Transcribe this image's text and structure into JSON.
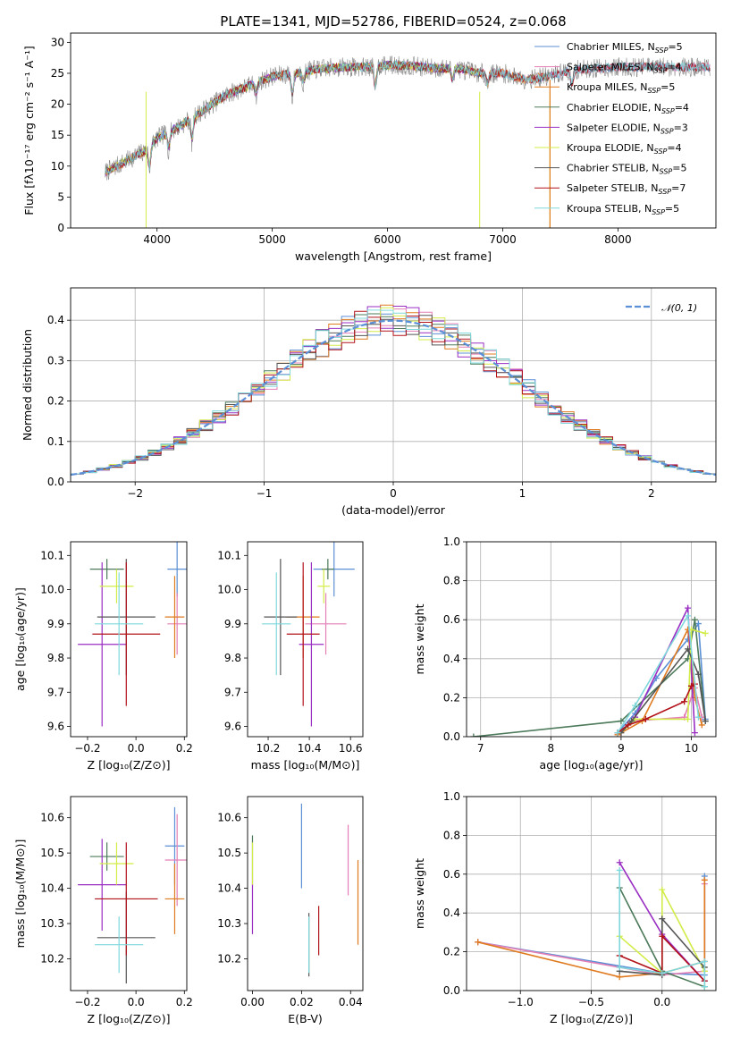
{
  "figure_title": "PLATE=1341, MJD=52786, FIBERID=0524, z=0.068",
  "chart_data": [
    {
      "id": "spectrum",
      "type": "line",
      "title": "PLATE=1341, MJD=52786, FIBERID=0524, z=0.068",
      "xlabel": "wavelength [Angstrom, rest frame]",
      "ylabel": "Flux [fλ10⁻¹⁷ erg cm⁻² s⁻¹ A⁻¹]",
      "xlim": [
        3250,
        8850
      ],
      "ylim": [
        0,
        31.5
      ],
      "xticks": [
        4000,
        5000,
        6000,
        7000,
        8000
      ],
      "yticks": [
        0,
        5,
        10,
        15,
        20,
        25,
        30
      ],
      "grid": false,
      "legend_position": "upper-right",
      "continuum": {
        "wavelength": [
          3550,
          3700,
          3900,
          4000,
          4200,
          4400,
          4600,
          4800,
          5000,
          5200,
          5400,
          5600,
          5800,
          6000,
          6200,
          6400,
          6600,
          6800,
          7000,
          7200,
          7400,
          7600,
          7800,
          8000,
          8200,
          8400,
          8600,
          8800
        ],
        "flux": [
          9,
          10.5,
          12.5,
          14.5,
          16.5,
          19,
          21.5,
          23,
          24.5,
          25,
          25.7,
          26,
          26,
          26.3,
          26.2,
          25.8,
          25.8,
          25,
          25,
          24,
          24.5,
          25.5,
          25.8,
          26,
          26,
          26,
          26,
          26
        ]
      },
      "absorption_features": [
        {
          "wavelength": 3934,
          "depth": 4
        },
        {
          "wavelength": 4101,
          "depth": 3
        },
        {
          "wavelength": 4304,
          "depth": 4
        },
        {
          "wavelength": 4861,
          "depth": 2
        },
        {
          "wavelength": 5175,
          "depth": 4
        },
        {
          "wavelength": 5270,
          "depth": 2
        },
        {
          "wavelength": 5893,
          "depth": 4
        },
        {
          "wavelength": 6563,
          "depth": 2
        },
        {
          "wavelength": 6867,
          "depth": 2
        },
        {
          "wavelength": 7600,
          "depth": 3
        }
      ],
      "series": [
        {
          "name": "Chabrier MILES, N_SSP=5",
          "legend_main": "Chabrier MILES, N",
          "legend_sub": "SSP",
          "legend_end": "=5",
          "color": "#5b8fd6",
          "x_end": 8800
        },
        {
          "name": "Salpeter MILES, N_SSP=4",
          "legend_main": "Salpeter MILES, N",
          "legend_sub": "SSP",
          "legend_end": "=4",
          "color": "#e37fb6",
          "x_end": 8800
        },
        {
          "name": "Kroupa MILES, N_SSP=5",
          "legend_main": "Kroupa MILES, N",
          "legend_sub": "SSP",
          "legend_end": "=5",
          "color": "#e07a1f",
          "x_end": 7400
        },
        {
          "name": "Chabrier ELODIE, N_SSP=4",
          "legend_main": "Chabrier ELODIE, N",
          "legend_sub": "SSP",
          "legend_end": "=4",
          "color": "#4c7a5a",
          "x_end": 6800
        },
        {
          "name": "Salpeter ELODIE, N_SSP=3",
          "legend_main": "Salpeter ELODIE, N",
          "legend_sub": "SSP",
          "legend_end": "=3",
          "color": "#9a2ec3",
          "x_end": 6800
        },
        {
          "name": "Kroupa ELODIE, N_SSP=4",
          "legend_main": "Kroupa ELODIE, N",
          "legend_sub": "SSP",
          "legend_end": "=4",
          "color": "#d3ec49",
          "x_end": 6800
        },
        {
          "name": "Chabrier STELIB, N_SSP=5",
          "legend_main": "Chabrier STELIB, N",
          "legend_sub": "SSP",
          "legend_end": "=5",
          "color": "#555555",
          "x_end": 8800
        },
        {
          "name": "Salpeter STELIB, N_SSP=7",
          "legend_main": "Salpeter STELIB, N",
          "legend_sub": "SSP",
          "legend_end": "=7",
          "color": "#b2121a",
          "x_end": 8800
        },
        {
          "name": "Kroupa STELIB, N_SSP=5",
          "legend_main": "Kroupa STELIB, N",
          "legend_sub": "SSP",
          "legend_end": "=5",
          "color": "#7fd8dc",
          "x_end": 8800
        }
      ]
    },
    {
      "id": "residuals",
      "type": "histogram",
      "xlabel": "(data-model)/error",
      "ylabel": "Normed distribution",
      "xlim": [
        -2.5,
        2.5
      ],
      "ylim": [
        0,
        0.48
      ],
      "xticks": [
        -2,
        -1,
        0,
        1,
        2
      ],
      "yticks": [
        0.0,
        0.1,
        0.2,
        0.3,
        0.4
      ],
      "grid": true,
      "bin_width": 0.1,
      "reference_curve": {
        "label": "𝒩(0, 1)",
        "color": "#5b8fd6"
      },
      "legend_position": "upper-right"
    },
    {
      "id": "age-vs-metallicity",
      "type": "errorbar",
      "xlabel": "Z [log₁₀(Z/Z⊙)]",
      "ylabel": "age  [log₁₀(age/yr)]",
      "xlim": [
        -0.27,
        0.21
      ],
      "ylim": [
        9.57,
        10.14
      ],
      "xticks": [
        -0.2,
        0.0,
        0.2
      ],
      "yticks": [
        9.6,
        9.7,
        9.8,
        9.9,
        10.0,
        10.1
      ],
      "points": [
        {
          "x": 0.17,
          "y": 10.06,
          "xerr": 0.04,
          "yerr": 0.08,
          "color": "#5b8fd6"
        },
        {
          "x": 0.17,
          "y": 9.9,
          "xerr": 0.04,
          "yerr": 0.09,
          "color": "#e37fb6"
        },
        {
          "x": 0.16,
          "y": 9.92,
          "xerr": 0.04,
          "yerr": 0.12,
          "color": "#e07a1f"
        },
        {
          "x": -0.12,
          "y": 10.06,
          "xerr": 0.07,
          "yerr": 0.03,
          "color": "#4c7a5a"
        },
        {
          "x": -0.14,
          "y": 9.84,
          "xerr": 0.1,
          "yerr": 0.24,
          "color": "#9a2ec3"
        },
        {
          "x": -0.08,
          "y": 10.01,
          "xerr": 0.07,
          "yerr": 0.05,
          "color": "#d3ec49"
        },
        {
          "x": -0.04,
          "y": 9.92,
          "xerr": 0.12,
          "yerr": 0.17,
          "color": "#555555"
        },
        {
          "x": -0.04,
          "y": 9.87,
          "xerr": 0.14,
          "yerr": 0.21,
          "color": "#b2121a"
        },
        {
          "x": -0.07,
          "y": 9.9,
          "xerr": 0.1,
          "yerr": 0.15,
          "color": "#7fd8dc"
        }
      ]
    },
    {
      "id": "age-vs-mass",
      "type": "errorbar",
      "xlabel": "mass [log₁₀(M/M⊙)]",
      "ylabel": "",
      "xlim": [
        10.1,
        10.66
      ],
      "ylim": [
        9.57,
        10.14
      ],
      "xticks": [
        10.2,
        10.4,
        10.6
      ],
      "yticks": [
        9.6,
        9.7,
        9.8,
        9.9,
        10.0,
        10.1
      ],
      "points": [
        {
          "x": 10.52,
          "y": 10.06,
          "xerr": 0.1,
          "yerr": 0.08,
          "color": "#5b8fd6"
        },
        {
          "x": 10.48,
          "y": 9.9,
          "xerr": 0.1,
          "yerr": 0.09,
          "color": "#e37fb6"
        },
        {
          "x": 10.37,
          "y": 9.92,
          "xerr": 0.08,
          "yerr": 0.12,
          "color": "#e07a1f"
        },
        {
          "x": 10.49,
          "y": 10.06,
          "xerr": 0.03,
          "yerr": 0.03,
          "color": "#4c7a5a"
        },
        {
          "x": 10.41,
          "y": 9.84,
          "xerr": 0.06,
          "yerr": 0.24,
          "color": "#9a2ec3"
        },
        {
          "x": 10.47,
          "y": 10.01,
          "xerr": 0.03,
          "yerr": 0.05,
          "color": "#d3ec49"
        },
        {
          "x": 10.26,
          "y": 9.92,
          "xerr": 0.08,
          "yerr": 0.17,
          "color": "#555555"
        },
        {
          "x": 10.37,
          "y": 9.87,
          "xerr": 0.08,
          "yerr": 0.21,
          "color": "#b2121a"
        },
        {
          "x": 10.24,
          "y": 9.9,
          "xerr": 0.07,
          "yerr": 0.15,
          "color": "#7fd8dc"
        }
      ]
    },
    {
      "id": "mass-weight-vs-age",
      "type": "line",
      "xlabel": "age  [log₁₀(age/yr)]",
      "ylabel": "mass weight",
      "xlim": [
        6.8,
        10.35
      ],
      "ylim": [
        0,
        1
      ],
      "xticks": [
        7,
        8,
        9,
        10
      ],
      "yticks": [
        0.0,
        0.2,
        0.4,
        0.6,
        0.8,
        1.0
      ],
      "grid": true,
      "series": [
        {
          "color": "#5b8fd6",
          "x": [
            8.95,
            9.2,
            9.5,
            9.95,
            10.1,
            10.2
          ],
          "y": [
            0.02,
            0.12,
            0.3,
            0.5,
            0.58,
            0.09
          ]
        },
        {
          "color": "#e37fb6",
          "x": [
            9.0,
            9.15,
            9.9,
            10.05,
            10.15
          ],
          "y": [
            0.02,
            0.08,
            0.1,
            0.25,
            0.1
          ]
        },
        {
          "color": "#e07a1f",
          "x": [
            8.95,
            9.3,
            9.95,
            10.05,
            10.15
          ],
          "y": [
            0.01,
            0.08,
            0.55,
            0.2,
            0.06
          ]
        },
        {
          "color": "#4c7a5a",
          "x": [
            6.9,
            9.0,
            9.95,
            10.05,
            10.2
          ],
          "y": [
            0.0,
            0.08,
            0.4,
            0.6,
            0.08
          ]
        },
        {
          "color": "#9a2ec3",
          "x": [
            9.0,
            9.2,
            9.95,
            10.05
          ],
          "y": [
            0.02,
            0.1,
            0.66,
            0.02
          ]
        },
        {
          "color": "#d3ec49",
          "x": [
            9.0,
            9.2,
            9.95,
            10.0,
            10.2
          ],
          "y": [
            0.02,
            0.09,
            0.09,
            0.55,
            0.53
          ]
        },
        {
          "color": "#555555",
          "x": [
            9.0,
            9.15,
            9.95,
            10.1,
            10.2
          ],
          "y": [
            0.02,
            0.08,
            0.45,
            0.32,
            0.08
          ]
        },
        {
          "color": "#b2121a",
          "x": [
            8.95,
            9.1,
            9.35,
            9.9,
            10.0,
            10.05
          ],
          "y": [
            0.02,
            0.06,
            0.09,
            0.18,
            0.26,
            0.27
          ]
        },
        {
          "color": "#7fd8dc",
          "x": [
            8.95,
            9.2,
            9.95,
            10.1
          ],
          "y": [
            0.02,
            0.16,
            0.62,
            0.1
          ]
        }
      ]
    },
    {
      "id": "mass-vs-metallicity",
      "type": "errorbar",
      "xlabel": "Z [log₁₀(Z/Z⊙)]",
      "ylabel": "mass [log₁₀(M/M⊙)]",
      "xlim": [
        -0.27,
        0.21
      ],
      "ylim": [
        10.11,
        10.66
      ],
      "xticks": [
        -0.2,
        0.0,
        0.2
      ],
      "yticks": [
        10.2,
        10.3,
        10.4,
        10.5,
        10.6
      ],
      "points": [
        {
          "x": 0.16,
          "y": 10.52,
          "xerr": 0.04,
          "yerr": 0.11,
          "color": "#5b8fd6"
        },
        {
          "x": 0.17,
          "y": 10.48,
          "xerr": 0.05,
          "yerr": 0.13,
          "color": "#e37fb6"
        },
        {
          "x": 0.16,
          "y": 10.37,
          "xerr": 0.04,
          "yerr": 0.1,
          "color": "#e07a1f"
        },
        {
          "x": -0.12,
          "y": 10.49,
          "xerr": 0.07,
          "yerr": 0.04,
          "color": "#4c7a5a"
        },
        {
          "x": -0.14,
          "y": 10.41,
          "xerr": 0.1,
          "yerr": 0.13,
          "color": "#9a2ec3"
        },
        {
          "x": -0.08,
          "y": 10.47,
          "xerr": 0.07,
          "yerr": 0.06,
          "color": "#d3ec49"
        },
        {
          "x": -0.04,
          "y": 10.26,
          "xerr": 0.12,
          "yerr": 0.13,
          "color": "#555555"
        },
        {
          "x": -0.04,
          "y": 10.37,
          "xerr": 0.13,
          "yerr": 0.16,
          "color": "#b2121a"
        },
        {
          "x": -0.07,
          "y": 10.24,
          "xerr": 0.1,
          "yerr": 0.08,
          "color": "#7fd8dc"
        }
      ]
    },
    {
      "id": "mass-vs-extinction",
      "type": "errorbar",
      "xlabel": "E(B-V)",
      "ylabel": "",
      "xlim": [
        -0.002,
        0.045
      ],
      "ylim": [
        10.11,
        10.66
      ],
      "xticks": [
        0.0,
        0.02,
        0.04
      ],
      "yticks": [
        10.2,
        10.3,
        10.4,
        10.5,
        10.6
      ],
      "points": [
        {
          "x": 0.02,
          "y": 10.52,
          "xerr": 0,
          "yerr": 0.12,
          "color": "#5b8fd6"
        },
        {
          "x": 0.039,
          "y": 10.48,
          "xerr": 0,
          "yerr": 0.1,
          "color": "#e37fb6"
        },
        {
          "x": 0.043,
          "y": 10.36,
          "xerr": 0,
          "yerr": 0.12,
          "color": "#e07a1f"
        },
        {
          "x": 0.0,
          "y": 10.49,
          "xerr": 0,
          "yerr": 0.06,
          "color": "#4c7a5a"
        },
        {
          "x": 0.0,
          "y": 10.35,
          "xerr": 0,
          "yerr": 0.08,
          "color": "#9a2ec3"
        },
        {
          "x": 0.0,
          "y": 10.47,
          "xerr": 0,
          "yerr": 0.06,
          "color": "#d3ec49"
        },
        {
          "x": 0.023,
          "y": 10.24,
          "xerr": 0,
          "yerr": 0.09,
          "color": "#555555"
        },
        {
          "x": 0.027,
          "y": 10.28,
          "xerr": 0,
          "yerr": 0.07,
          "color": "#b2121a"
        },
        {
          "x": 0.023,
          "y": 10.24,
          "xerr": 0,
          "yerr": 0.08,
          "color": "#7fd8dc"
        }
      ]
    },
    {
      "id": "mass-weight-vs-metallicity",
      "type": "line",
      "xlabel": "Z [log₁₀(Z/Z⊙)]",
      "ylabel": "mass weight",
      "xlim": [
        -1.38,
        0.38
      ],
      "ylim": [
        0,
        1
      ],
      "xticks": [
        -1.0,
        -0.5,
        0.0
      ],
      "yticks": [
        0.0,
        0.2,
        0.4,
        0.6,
        0.8,
        1.0
      ],
      "grid": true,
      "series": [
        {
          "color": "#5b8fd6",
          "x": [
            -1.3,
            0.0,
            0.3,
            0.3
          ],
          "y": [
            0.25,
            0.09,
            0.08,
            0.59
          ]
        },
        {
          "color": "#e37fb6",
          "x": [
            -1.3,
            -0.3,
            0.0,
            0.3,
            0.3
          ],
          "y": [
            0.25,
            0.12,
            0.08,
            0.1,
            0.55
          ]
        },
        {
          "color": "#e07a1f",
          "x": [
            -1.3,
            -0.3,
            0.0,
            0.3,
            0.3
          ],
          "y": [
            0.25,
            0.07,
            0.09,
            0.15,
            0.57
          ]
        },
        {
          "color": "#4c7a5a",
          "x": [
            -0.3,
            0.0,
            0.3,
            0.3
          ],
          "y": [
            0.53,
            0.1,
            0.02,
            0.05
          ]
        },
        {
          "color": "#9a2ec3",
          "x": [
            -0.3,
            0.0,
            0.3
          ],
          "y": [
            0.66,
            0.29,
            0.05
          ]
        },
        {
          "color": "#d3ec49",
          "x": [
            -0.3,
            0.0,
            0.0,
            0.3
          ],
          "y": [
            0.28,
            0.09,
            0.52,
            0.1
          ]
        },
        {
          "color": "#555555",
          "x": [
            -0.3,
            0.0,
            0.0,
            0.3
          ],
          "y": [
            0.1,
            0.08,
            0.37,
            0.12
          ]
        },
        {
          "color": "#b2121a",
          "x": [
            -0.3,
            0.0,
            0.0,
            0.3
          ],
          "y": [
            0.18,
            0.09,
            0.28,
            0.05
          ]
        },
        {
          "color": "#7fd8dc",
          "x": [
            -0.3,
            -0.3,
            0.0,
            0.3,
            0.3
          ],
          "y": [
            0.62,
            0.12,
            0.09,
            0.15,
            0.02
          ]
        }
      ]
    }
  ]
}
